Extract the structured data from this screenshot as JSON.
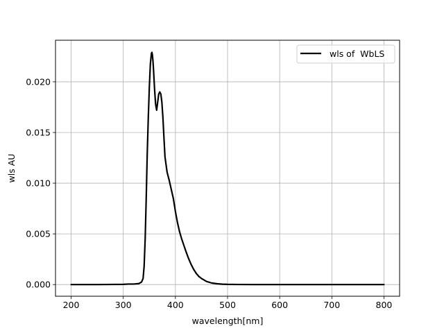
{
  "chart_data": {
    "type": "line",
    "title": "",
    "xlabel": "wavelength[nm]",
    "ylabel": "wls AU",
    "xlim": [
      170,
      830
    ],
    "ylim": [
      -0.00115,
      0.0241
    ],
    "x_ticks": [
      200,
      300,
      400,
      500,
      600,
      700,
      800
    ],
    "x_tick_labels": [
      "200",
      "300",
      "400",
      "500",
      "600",
      "700",
      "800"
    ],
    "y_ticks": [
      0.0,
      0.005,
      0.01,
      0.015,
      0.02
    ],
    "y_tick_labels": [
      "0.000",
      "0.005",
      "0.010",
      "0.015",
      "0.020"
    ],
    "grid": true,
    "legend_position": "upper right",
    "series": [
      {
        "name": "wls of  WbLS",
        "color": "#000000",
        "x": [
          200,
          250,
          300,
          310,
          320,
          330,
          335,
          338,
          340,
          342,
          344,
          346,
          348,
          350,
          352,
          354,
          355,
          356,
          357,
          358,
          360,
          362,
          364,
          366,
          368,
          370,
          372,
          374,
          376,
          378,
          380,
          384,
          388,
          392,
          396,
          400,
          404,
          408,
          412,
          416,
          420,
          425,
          430,
          435,
          440,
          445,
          450,
          460,
          470,
          480,
          490,
          500,
          520,
          550,
          600,
          700,
          800
        ],
        "y": [
          0.0,
          0.0,
          2e-05,
          5e-05,
          5e-05,
          0.0001,
          0.00025,
          0.0006,
          0.0018,
          0.0045,
          0.0085,
          0.013,
          0.0165,
          0.0195,
          0.0218,
          0.0228,
          0.0229,
          0.0226,
          0.022,
          0.0212,
          0.0193,
          0.0178,
          0.0172,
          0.018,
          0.0188,
          0.019,
          0.0188,
          0.018,
          0.0165,
          0.0145,
          0.0126,
          0.0111,
          0.0103,
          0.0094,
          0.0085,
          0.0072,
          0.0061,
          0.0052,
          0.0045,
          0.0039,
          0.0033,
          0.0026,
          0.002,
          0.0015,
          0.0011,
          0.0008,
          0.0006,
          0.0003,
          0.00015,
          8e-05,
          4e-05,
          2e-05,
          1e-05,
          0.0,
          0.0,
          0.0,
          0.0
        ]
      }
    ]
  }
}
